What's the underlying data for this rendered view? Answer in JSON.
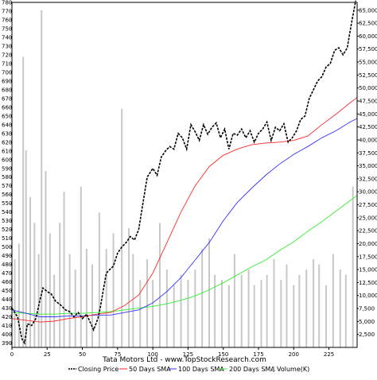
{
  "chart_data": {
    "type": "line",
    "title": "Tata Motors Ltd - www.TopStockResearch.com",
    "x_ticks": [
      0,
      25,
      50,
      75,
      100,
      125,
      150,
      175,
      200,
      225
    ],
    "xlim": [
      0,
      245
    ],
    "ylim_left": [
      385,
      780
    ],
    "y_left_ticks": [
      390,
      400,
      410,
      420,
      430,
      440,
      450,
      460,
      470,
      480,
      490,
      500,
      510,
      520,
      530,
      540,
      550,
      560,
      570,
      580,
      590,
      600,
      610,
      620,
      630,
      640,
      650,
      660,
      670,
      680,
      690,
      700,
      710,
      720,
      730,
      740,
      750,
      760,
      770,
      780
    ],
    "ylim_right": [
      0,
      66500
    ],
    "y_right_ticks": [
      "2,500",
      "5,000",
      "7,500",
      "10,000",
      "12,500",
      "15,000",
      "17,500",
      "20,000",
      "22,500",
      "25,000",
      "27,500",
      "30,000",
      "32,500",
      "35,000",
      "37,500",
      "40,000",
      "42,500",
      "45,000",
      "47,500",
      "50,000",
      "52,500",
      "55,000",
      "57,500",
      "60,000",
      "62,500",
      "65,000"
    ],
    "y_right_values": [
      2500,
      5000,
      7500,
      10000,
      12500,
      15000,
      17500,
      20000,
      22500,
      25000,
      27500,
      30000,
      32500,
      35000,
      37500,
      40000,
      42500,
      45000,
      47500,
      50000,
      52500,
      55000,
      57500,
      60000,
      62500,
      65000
    ],
    "grid": false,
    "legend_position": "bottom",
    "series": [
      {
        "name": "Closing Price",
        "color": "#000000",
        "style": "dashed",
        "x": [
          0,
          4,
          7,
          9,
          11,
          14,
          17,
          20,
          22,
          25,
          28,
          31,
          35,
          38,
          41,
          44,
          47,
          50,
          53,
          56,
          58,
          61,
          63,
          65,
          67,
          70,
          72,
          75,
          78,
          81,
          84,
          87,
          90,
          93,
          96,
          100,
          103,
          106,
          109,
          112,
          115,
          118,
          121,
          124,
          127,
          130,
          133,
          136,
          139,
          142,
          145,
          148,
          151,
          154,
          157,
          160,
          163,
          166,
          169,
          172,
          175,
          178,
          181,
          184,
          187,
          190,
          193,
          196,
          199,
          202,
          205,
          208,
          211,
          214,
          217,
          220,
          223,
          226,
          229,
          232,
          235,
          238,
          241,
          244
        ],
        "y": [
          430,
          420,
          395,
          390,
          412,
          410,
          418,
          440,
          453,
          449,
          446,
          438,
          433,
          428,
          426,
          420,
          425,
          418,
          423,
          412,
          405,
          418,
          433,
          452,
          470,
          475,
          478,
          493,
          500,
          505,
          512,
          508,
          520,
          550,
          580,
          590,
          582,
          603,
          610,
          615,
          612,
          630,
          625,
          612,
          640,
          632,
          622,
          640,
          629,
          637,
          642,
          625,
          635,
          612,
          630,
          628,
          635,
          625,
          633,
          620,
          630,
          635,
          643,
          622,
          637,
          633,
          641,
          620,
          625,
          633,
          646,
          650,
          670,
          680,
          690,
          695,
          706,
          710,
          725,
          728,
          720,
          728,
          756,
          782
        ]
      },
      {
        "name": "50 Days SMA",
        "color": "#ff2a2a",
        "x": [
          0,
          10,
          20,
          30,
          40,
          50,
          60,
          70,
          80,
          90,
          100,
          110,
          120,
          130,
          140,
          150,
          160,
          170,
          180,
          190,
          200,
          210,
          220,
          230,
          240,
          245
        ],
        "y": [
          418,
          416,
          414,
          415,
          418,
          420,
          423,
          425,
          433,
          445,
          470,
          505,
          540,
          570,
          592,
          605,
          612,
          617,
          619,
          620,
          622,
          627,
          640,
          652,
          665,
          671
        ]
      },
      {
        "name": "100 Days SMA",
        "color": "#3333ff",
        "x": [
          0,
          10,
          20,
          30,
          40,
          50,
          60,
          70,
          80,
          90,
          100,
          110,
          120,
          130,
          140,
          150,
          160,
          170,
          180,
          190,
          200,
          210,
          220,
          230,
          240,
          245
        ],
        "y": [
          428,
          424,
          420,
          420,
          421,
          421,
          422,
          422,
          425,
          428,
          436,
          449,
          465,
          485,
          505,
          530,
          551,
          567,
          582,
          595,
          606,
          615,
          625,
          633,
          643,
          647
        ]
      },
      {
        "name": "200 Days SMA",
        "color": "#33ee33",
        "x": [
          0,
          10,
          20,
          30,
          40,
          50,
          60,
          70,
          80,
          90,
          100,
          110,
          120,
          130,
          140,
          150,
          160,
          170,
          180,
          190,
          200,
          210,
          220,
          230,
          240,
          245
        ],
        "y": [
          425,
          424,
          423,
          423,
          424,
          424,
          425,
          426,
          428,
          430,
          432,
          435,
          439,
          444,
          451,
          459,
          468,
          477,
          485,
          496,
          506,
          518,
          529,
          541,
          553,
          559
        ]
      },
      {
        "name": "Volume(K)",
        "color": "#c8c8c8",
        "type": "bar",
        "axis": "right",
        "x": [
          2,
          5,
          8,
          10,
          13,
          16,
          19,
          21,
          24,
          27,
          30,
          34,
          37,
          41,
          45,
          49,
          53,
          57,
          62,
          67,
          72,
          78,
          83,
          86,
          91,
          96,
          100,
          105,
          110,
          115,
          120,
          125,
          130,
          135,
          140,
          144,
          149,
          154,
          158,
          163,
          168,
          172,
          177,
          181,
          186,
          191,
          195,
          200,
          204,
          209,
          214,
          218,
          223,
          228,
          233,
          237,
          242
        ],
        "values": [
          17000,
          20000,
          56000,
          38000,
          29000,
          24000,
          18000,
          65000,
          34000,
          22000,
          14000,
          24000,
          30000,
          18000,
          15000,
          31000,
          19000,
          16000,
          26000,
          19000,
          22000,
          46000,
          23000,
          18000,
          13000,
          17000,
          13000,
          24000,
          15000,
          12000,
          14000,
          13000,
          15000,
          19000,
          21000,
          14000,
          13000,
          12000,
          18000,
          14000,
          15000,
          12000,
          13000,
          14000,
          17000,
          13000,
          16000,
          12000,
          14000,
          15000,
          17000,
          16000,
          12000,
          18000,
          15000,
          14000,
          31000
        ]
      }
    ]
  }
}
